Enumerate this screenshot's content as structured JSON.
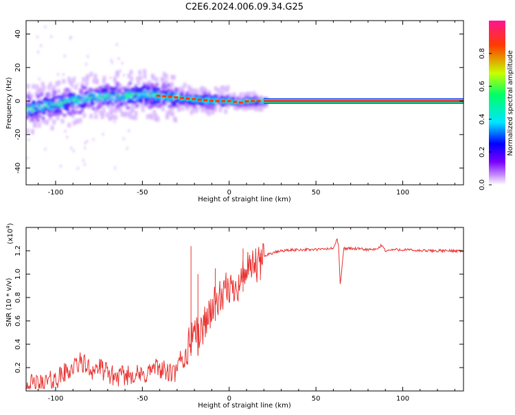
{
  "title": "C2E6.2024.006.09.34.G25",
  "chart_data": [
    {
      "type": "heatmap",
      "xlabel": "Height of straight line (km)",
      "ylabel": "Frequency (Hz)",
      "xlim": [
        -117,
        135
      ],
      "ylim": [
        -50,
        48
      ],
      "xticks": [
        -100,
        -50,
        0,
        50,
        100
      ],
      "yticks": [
        -40,
        -20,
        0,
        20,
        40
      ],
      "colorbar": {
        "label": "Normalized spectral amplitude",
        "range": [
          0,
          1
        ],
        "ticks": [
          "0.0",
          "0.2",
          "0.4",
          "0.6",
          "0.8"
        ],
        "colors": [
          "#ffffff",
          "#c38cff",
          "#7a00ff",
          "#0000ff",
          "#00e6ff",
          "#00ff66",
          "#c8ff00",
          "#ff3a00",
          "#ff1493"
        ]
      },
      "ridge": [
        {
          "x": -117,
          "y": -5
        },
        {
          "x": -110,
          "y": -4
        },
        {
          "x": -100,
          "y": -2
        },
        {
          "x": -90,
          "y": 0
        },
        {
          "x": -80,
          "y": 2
        },
        {
          "x": -70,
          "y": 3
        },
        {
          "x": -60,
          "y": 3
        },
        {
          "x": -50,
          "y": 4
        },
        {
          "x": -40,
          "y": 3
        },
        {
          "x": -30,
          "y": 2
        },
        {
          "x": -20,
          "y": 1
        },
        {
          "x": -10,
          "y": 0
        },
        {
          "x": 0,
          "y": 0
        },
        {
          "x": 5,
          "y": -1
        },
        {
          "x": 10,
          "y": 0
        },
        {
          "x": 20,
          "y": 0
        },
        {
          "x": 135,
          "y": 0
        }
      ],
      "steady_line": {
        "x_start": 20,
        "x_end": 135,
        "y": 0
      }
    },
    {
      "type": "line",
      "xlabel": "Height of straight line (km)",
      "ylabel": "SNR (10 * v/v)",
      "y_multiplier_label": "(x10",
      "y_multiplier_exp": "4",
      "y_multiplier_close": ")",
      "xlim": [
        -117,
        135
      ],
      "ylim": [
        0,
        1.4
      ],
      "xticks": [
        -100,
        -50,
        0,
        50,
        100
      ],
      "yticks": [
        0.2,
        0.4,
        0.6,
        0.8,
        1.0,
        1.2
      ],
      "ytick_labels": [
        "0.2",
        "0.4",
        "0.6",
        "0.8",
        "1.0",
        "1.2"
      ],
      "color": "#e8312f",
      "series": [
        {
          "x": [
            -117,
            -110,
            -100,
            -95,
            -90,
            -85,
            -80,
            -75,
            -70,
            -65,
            -60,
            -55,
            -50,
            -45,
            -40,
            -35,
            -30,
            -28,
            -26,
            -24,
            -22,
            -20,
            -18,
            -16,
            -14,
            -12,
            -10,
            -8,
            -6,
            -4,
            -2,
            0,
            2,
            4,
            6,
            8,
            10,
            12,
            14,
            16,
            18,
            20,
            22,
            25,
            30,
            40,
            50,
            60,
            62,
            63,
            64,
            66,
            70,
            80,
            85,
            88,
            90,
            95,
            100,
            110,
            120,
            135
          ],
          "y": [
            0.06,
            0.05,
            0.1,
            0.15,
            0.2,
            0.25,
            0.18,
            0.2,
            0.15,
            0.12,
            0.13,
            0.15,
            0.12,
            0.18,
            0.2,
            0.15,
            0.15,
            0.3,
            0.25,
            0.35,
            0.45,
            0.55,
            0.45,
            0.5,
            0.6,
            0.65,
            0.7,
            0.75,
            0.8,
            0.75,
            0.85,
            0.9,
            0.85,
            0.95,
            0.9,
            1.0,
            1.05,
            1.0,
            1.1,
            1.05,
            1.1,
            1.15,
            1.17,
            1.18,
            1.2,
            1.21,
            1.21,
            1.22,
            1.3,
            1.25,
            0.9,
            1.22,
            1.22,
            1.21,
            1.21,
            1.25,
            1.2,
            1.21,
            1.21,
            1.2,
            1.2,
            1.2
          ]
        }
      ],
      "spikes": [
        {
          "x": -22,
          "y": 1.24
        },
        {
          "x": -18,
          "y": 1.0
        },
        {
          "x": -8,
          "y": 1.05
        },
        {
          "x": 8,
          "y": 1.22
        },
        {
          "x": 18,
          "y": 1.18
        }
      ]
    }
  ]
}
